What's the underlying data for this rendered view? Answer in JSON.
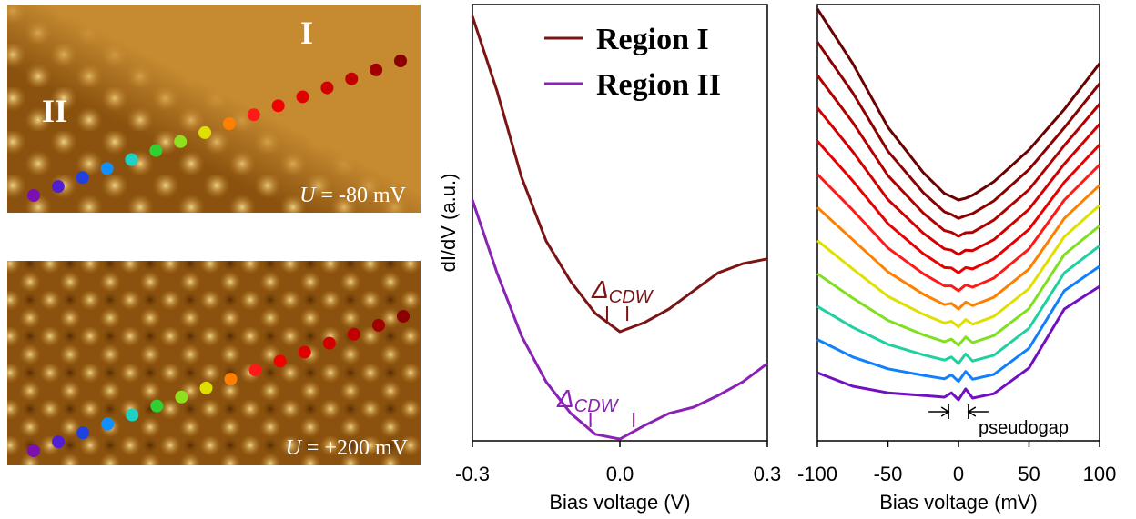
{
  "images": [
    {
      "region_labels": [
        "I",
        "II"
      ],
      "bias": {
        "symbol": "U",
        "text": " = -80 mV"
      }
    },
    {
      "bias": {
        "symbol": "U",
        "text": " = +200 mV"
      }
    }
  ],
  "chart_data": [
    {
      "type": "line",
      "ylabel": "dI/dV (a.u.)",
      "xlabel": "Bias voltage (V)",
      "x": [
        -0.3,
        -0.25,
        -0.2,
        -0.15,
        -0.1,
        -0.05,
        0,
        0.05,
        0.1,
        0.15,
        0.2,
        0.25,
        0.3
      ],
      "xlim": [
        -0.3,
        0.3
      ],
      "xticks": [
        -0.3,
        {
          "value": 0,
          "label": "0.0"
        },
        0.3
      ],
      "ylim": [
        0,
        10
      ],
      "series": [
        {
          "name": "Region I",
          "color": "#7b1414",
          "values": [
            9.73,
            8.02,
            6.04,
            4.58,
            3.65,
            2.92,
            2.5,
            2.71,
            3.02,
            3.44,
            3.85,
            4.06,
            4.17
          ]
        },
        {
          "name": "Region II",
          "color": "#8a22b4",
          "values": [
            5.52,
            3.85,
            2.4,
            1.35,
            0.63,
            0.15,
            0.04,
            0.35,
            0.63,
            0.77,
            1.04,
            1.35,
            1.77
          ]
        }
      ],
      "annotations": [
        {
          "symbol": "Δ",
          "subscript": "CDW",
          "x_marks": [
            -0.026,
            0.015
          ]
        },
        {
          "symbol": "Δ",
          "subscript": "CDW",
          "x_marks": [
            -0.06,
            0.028
          ]
        }
      ]
    },
    {
      "type": "line",
      "xlabel": "Bias voltage (mV)",
      "x": [
        -100,
        -75,
        -50,
        -25,
        -10,
        -5,
        0,
        5,
        10,
        25,
        50,
        75,
        100
      ],
      "xlim": [
        -100,
        100
      ],
      "xticks": [
        -100,
        -50,
        0,
        50,
        100
      ],
      "ylim": [
        0,
        10
      ],
      "series": [
        {
          "color": "#6b0000",
          "values": [
            9.9,
            8.65,
            7.19,
            6.15,
            5.67,
            5.6,
            5.52,
            5.56,
            5.63,
            5.94,
            6.67,
            7.6,
            8.65
          ]
        },
        {
          "color": "#8b0000",
          "values": [
            9.14,
            7.98,
            6.64,
            5.69,
            5.25,
            5.19,
            5.1,
            5.16,
            5.21,
            5.5,
            6.22,
            7.18,
            8.19
          ]
        },
        {
          "color": "#b00000",
          "values": [
            8.38,
            7.3,
            6.08,
            5.22,
            4.82,
            4.78,
            4.69,
            4.77,
            4.78,
            5.06,
            5.76,
            6.77,
            7.72
          ]
        },
        {
          "color": "#d00000",
          "values": [
            7.63,
            6.63,
            5.53,
            4.76,
            4.4,
            4.37,
            4.27,
            4.37,
            4.36,
            4.61,
            5.31,
            6.35,
            7.26
          ]
        },
        {
          "color": "#e80000",
          "values": [
            6.87,
            5.96,
            4.98,
            4.29,
            3.97,
            3.96,
            3.85,
            3.97,
            3.94,
            4.17,
            4.85,
            5.93,
            6.79
          ]
        },
        {
          "color": "#ff1a1a",
          "values": [
            6.11,
            5.29,
            4.42,
            3.83,
            3.55,
            3.55,
            3.44,
            3.57,
            3.52,
            3.73,
            4.4,
            5.52,
            6.33
          ]
        },
        {
          "color": "#ff8000",
          "values": [
            5.35,
            4.61,
            3.87,
            3.36,
            3.12,
            3.15,
            3.02,
            3.18,
            3.1,
            3.29,
            3.94,
            5.1,
            5.86
          ]
        },
        {
          "color": "#e0e000",
          "values": [
            4.59,
            3.94,
            3.31,
            2.9,
            2.7,
            2.74,
            2.61,
            2.78,
            2.67,
            2.85,
            3.49,
            4.68,
            5.4
          ]
        },
        {
          "color": "#80e020",
          "values": [
            3.83,
            3.27,
            2.76,
            2.43,
            2.27,
            2.33,
            2.19,
            2.38,
            2.25,
            2.41,
            3.03,
            4.27,
            4.93
          ]
        },
        {
          "color": "#20d0a0",
          "values": [
            3.08,
            2.6,
            2.21,
            1.97,
            1.85,
            1.92,
            1.77,
            1.99,
            1.83,
            1.96,
            2.58,
            3.85,
            4.47
          ]
        },
        {
          "color": "#1080ff",
          "values": [
            2.32,
            1.92,
            1.65,
            1.5,
            1.42,
            1.51,
            1.36,
            1.59,
            1.41,
            1.52,
            2.12,
            3.44,
            4.0
          ]
        },
        {
          "color": "#7010c0",
          "values": [
            1.56,
            1.25,
            1.1,
            1.04,
            1.0,
            1.1,
            0.94,
            1.19,
            0.98,
            1.08,
            1.67,
            3.02,
            3.54
          ]
        }
      ],
      "annotations": [
        {
          "text": "pseudogap",
          "x_marks": [
            -7,
            7
          ]
        }
      ]
    }
  ]
}
